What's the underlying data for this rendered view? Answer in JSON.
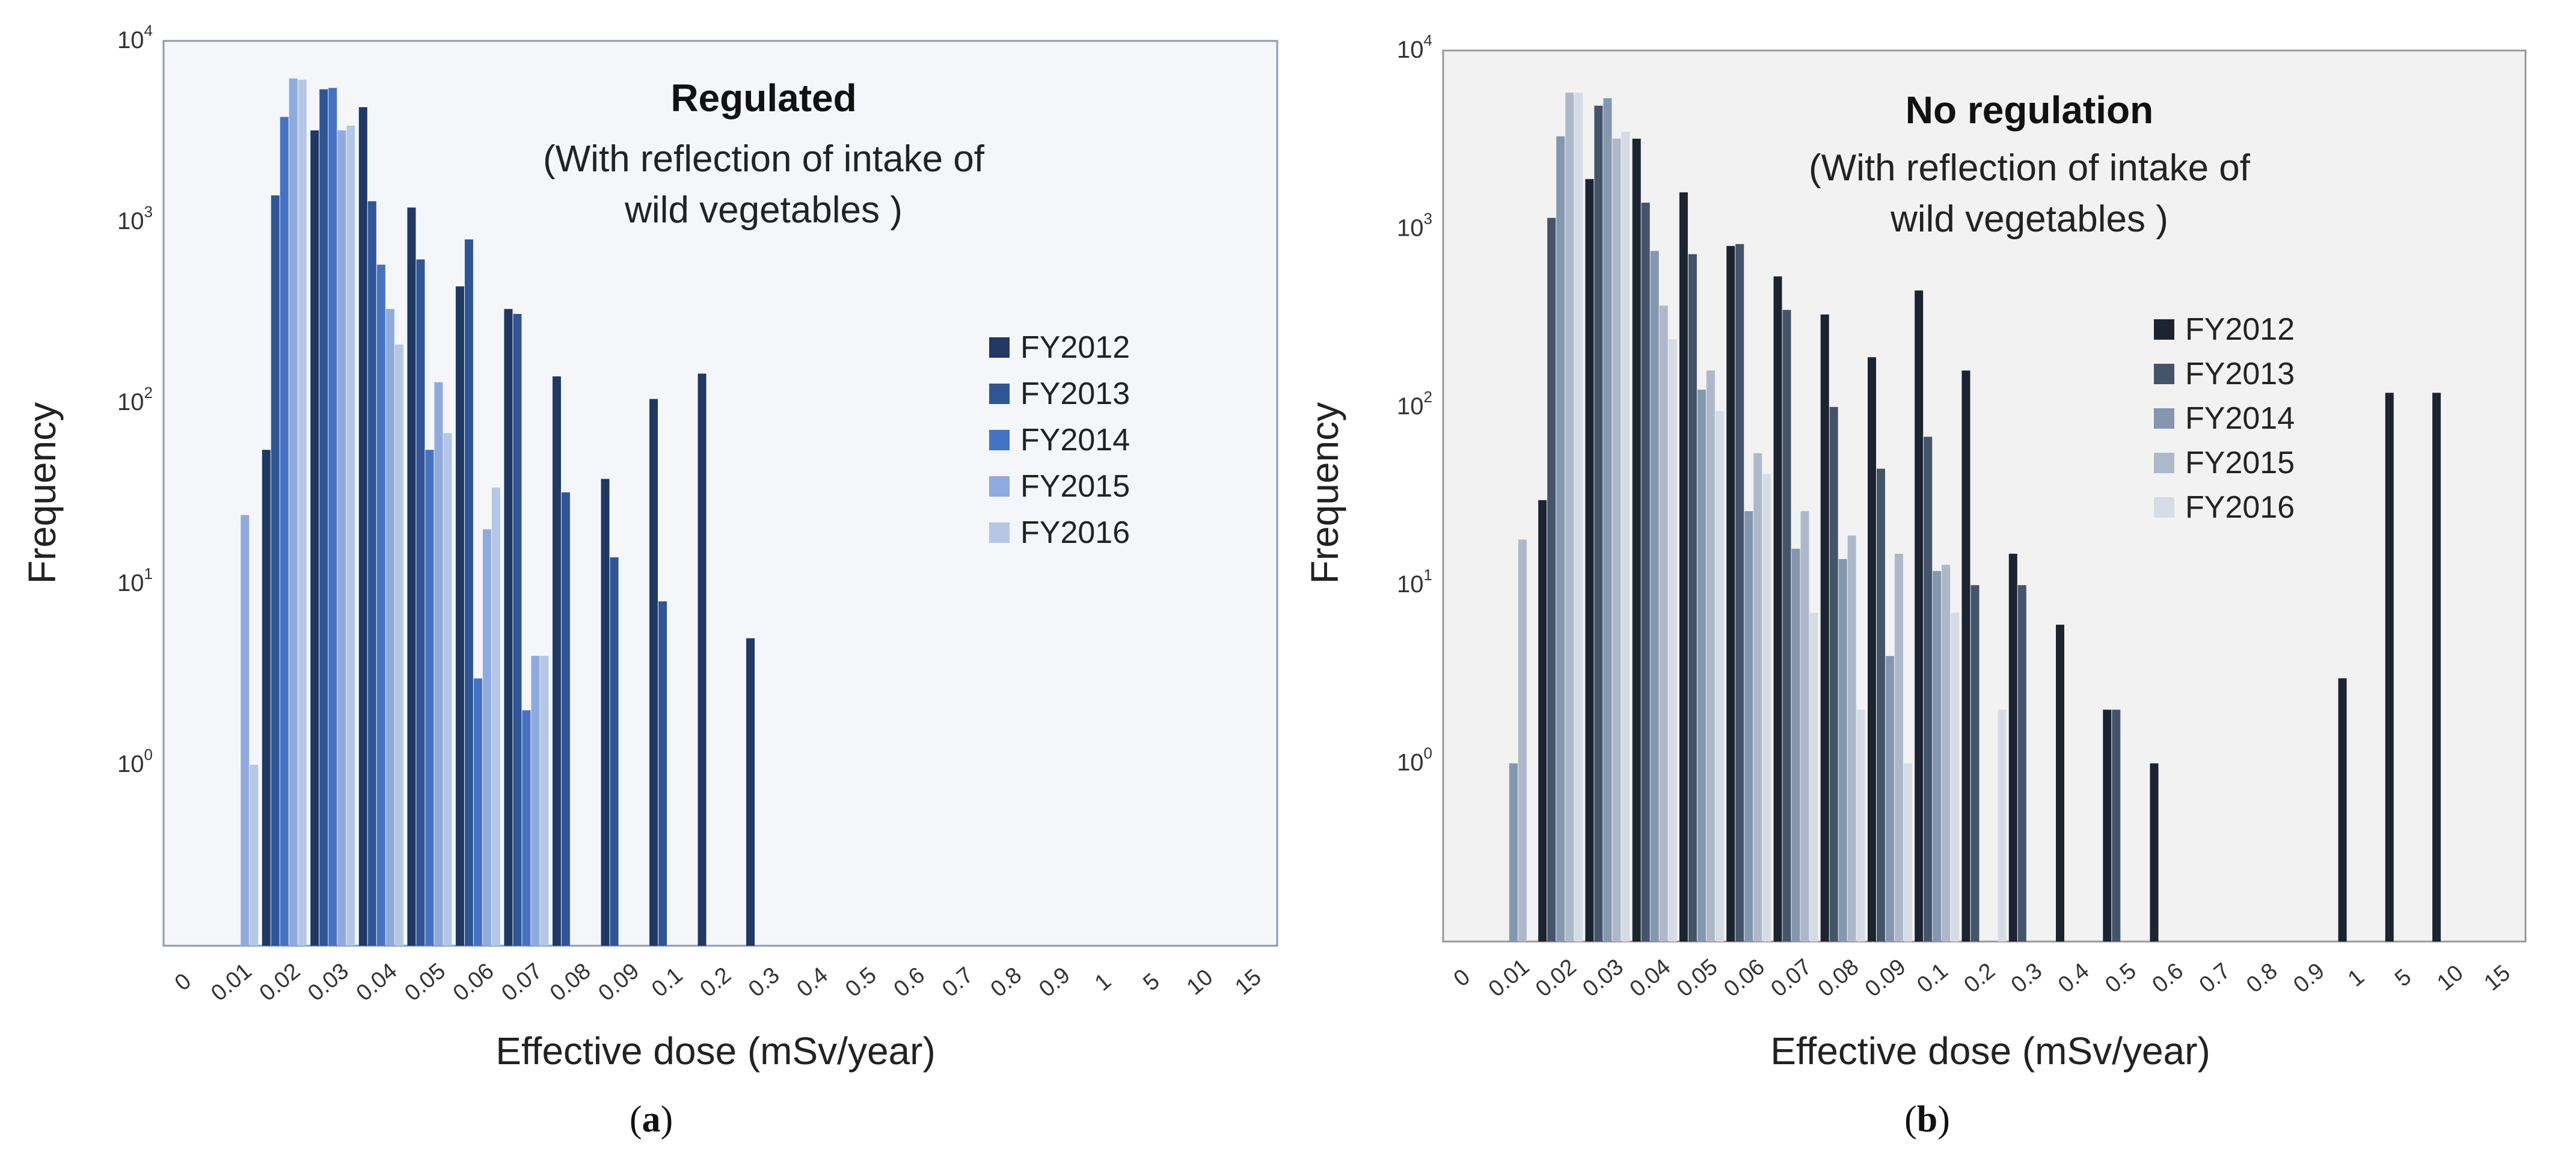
{
  "chart_data": [
    {
      "panel": "a",
      "type": "bar",
      "scale": "log",
      "title": "Regulated",
      "subtitle_line1": "(With reflection of intake of",
      "subtitle_line2": "wild vegetables )",
      "xlabel": "Effective dose (mSv/year)",
      "ylabel": "Frequency",
      "caption_open": "(",
      "caption_letter": "a",
      "caption_close": ")",
      "ylim": [
        0.1,
        10000
      ],
      "yticks": [
        {
          "base": "10",
          "exp": "0",
          "value": 1
        },
        {
          "base": "10",
          "exp": "1",
          "value": 10
        },
        {
          "base": "10",
          "exp": "2",
          "value": 100
        },
        {
          "base": "10",
          "exp": "3",
          "value": 1000
        },
        {
          "base": "10",
          "exp": "4",
          "value": 10000
        }
      ],
      "categories": [
        "0",
        "0.01",
        "0.02",
        "0.03",
        "0.04",
        "0.05",
        "0.06",
        "0.07",
        "0.08",
        "0.09",
        "0.1",
        "0.2",
        "0.3",
        "0.4",
        "0.5",
        "0.6",
        "0.7",
        "0.8",
        "0.9",
        "1",
        "5",
        "10",
        "15"
      ],
      "colors": {
        "background": "#f4f6fa",
        "border": "#8a9bb5"
      },
      "legend_position": "right",
      "series": [
        {
          "name": "FY2012",
          "color": "#1f3864",
          "values": [
            null,
            null,
            55,
            3200,
            4300,
            1200,
            440,
            330,
            140,
            38,
            105,
            145,
            5,
            null,
            null,
            null,
            null,
            null,
            null,
            null,
            null,
            null,
            null
          ]
        },
        {
          "name": "FY2013",
          "color": "#2f5597",
          "values": [
            null,
            null,
            1400,
            5400,
            1300,
            620,
            800,
            310,
            32,
            14,
            8,
            null,
            null,
            null,
            null,
            null,
            null,
            null,
            null,
            null,
            null,
            null,
            null
          ]
        },
        {
          "name": "FY2014",
          "color": "#4472c4",
          "values": [
            null,
            null,
            3800,
            5500,
            580,
            55,
            3,
            2,
            null,
            null,
            null,
            null,
            null,
            null,
            null,
            null,
            null,
            null,
            null,
            null,
            null,
            null,
            null
          ]
        },
        {
          "name": "FY2015",
          "color": "#8faadc",
          "values": [
            null,
            24,
            6200,
            3200,
            330,
            130,
            20,
            4,
            null,
            null,
            null,
            null,
            null,
            null,
            null,
            null,
            null,
            null,
            null,
            null,
            null,
            null,
            null
          ]
        },
        {
          "name": "FY2016",
          "color": "#b4c7e7",
          "values": [
            null,
            1,
            6100,
            3400,
            210,
            68,
            34,
            4,
            null,
            null,
            null,
            null,
            null,
            null,
            null,
            null,
            null,
            null,
            null,
            null,
            null,
            null,
            null
          ]
        }
      ]
    },
    {
      "panel": "b",
      "type": "bar",
      "scale": "log",
      "title": "No regulation",
      "subtitle_line1": "(With reflection of intake of",
      "subtitle_line2": "wild vegetables )",
      "xlabel": "Effective dose (mSv/year)",
      "ylabel": "Frequency",
      "caption_open": "(",
      "caption_letter": "b",
      "caption_close": ")",
      "ylim": [
        0.1,
        10000
      ],
      "yticks": [
        {
          "base": "10",
          "exp": "0",
          "value": 1
        },
        {
          "base": "10",
          "exp": "1",
          "value": 10
        },
        {
          "base": "10",
          "exp": "2",
          "value": 100
        },
        {
          "base": "10",
          "exp": "3",
          "value": 1000
        },
        {
          "base": "10",
          "exp": "4",
          "value": 10000
        }
      ],
      "categories": [
        "0",
        "0.01",
        "0.02",
        "0.03",
        "0.04",
        "0.05",
        "0.06",
        "0.07",
        "0.08",
        "0.09",
        "0.1",
        "0.2",
        "0.3",
        "0.4",
        "0.5",
        "0.6",
        "0.7",
        "0.8",
        "0.9",
        "1",
        "5",
        "10",
        "15"
      ],
      "colors": {
        "background": "#f2f2f2",
        "border": "#999999"
      },
      "legend_position": "right",
      "series": [
        {
          "name": "FY2012",
          "color": "#1c2331",
          "values": [
            null,
            null,
            30,
            1900,
            3200,
            1600,
            800,
            540,
            330,
            190,
            450,
            160,
            15,
            6,
            2,
            1,
            null,
            null,
            null,
            3,
            120,
            120,
            null
          ]
        },
        {
          "name": "FY2013",
          "color": "#44546a",
          "values": [
            null,
            null,
            1150,
            4900,
            1400,
            720,
            820,
            350,
            100,
            45,
            68,
            10,
            10,
            null,
            2,
            null,
            null,
            null,
            null,
            null,
            null,
            null,
            null
          ]
        },
        {
          "name": "FY2014",
          "color": "#8497b0",
          "values": [
            null,
            1,
            3300,
            5400,
            750,
            125,
            26,
            16,
            14,
            4,
            12,
            null,
            null,
            null,
            null,
            null,
            null,
            null,
            null,
            null,
            null,
            null,
            null
          ]
        },
        {
          "name": "FY2015",
          "color": "#adb9ca",
          "values": [
            null,
            18,
            5800,
            3200,
            370,
            160,
            55,
            26,
            19,
            15,
            13,
            null,
            null,
            null,
            null,
            null,
            null,
            null,
            null,
            null,
            null,
            null,
            null
          ]
        },
        {
          "name": "FY2016",
          "color": "#d6dce5",
          "values": [
            null,
            null,
            5800,
            3500,
            240,
            95,
            42,
            7,
            2,
            1,
            7,
            2,
            null,
            null,
            null,
            null,
            null,
            null,
            null,
            null,
            null,
            null,
            null
          ]
        }
      ]
    }
  ]
}
